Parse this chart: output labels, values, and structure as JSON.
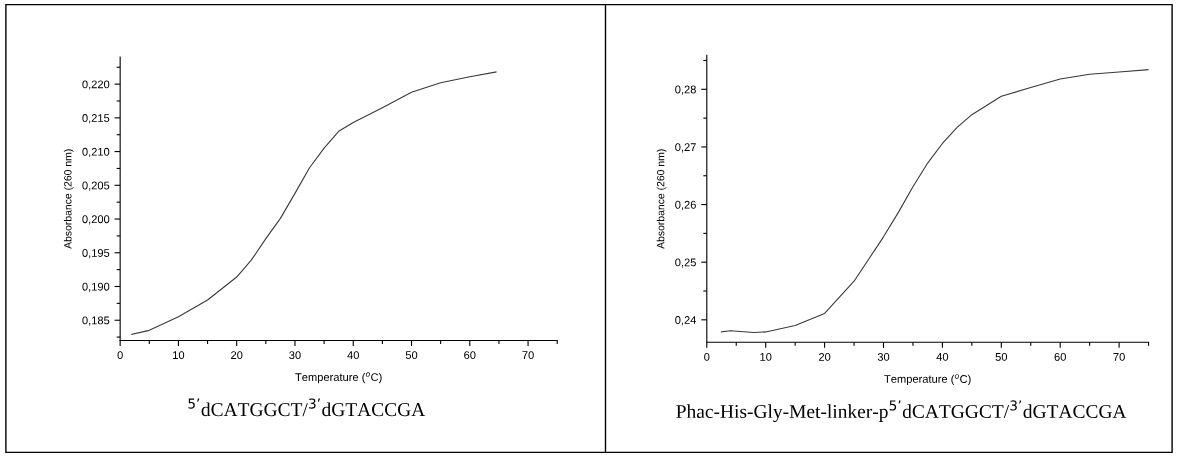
{
  "chart_data": [
    {
      "type": "line",
      "xlabel": "Temperature ($^{o}$C)",
      "ylabel": "Absorbance (260 nm)",
      "annotations": [
        "$^{5’}$dCATGGCT/$^{3’}$dGTACCGA"
      ],
      "xlim": [
        0,
        75
      ],
      "xticks": [
        0,
        10,
        20,
        30,
        40,
        50,
        60,
        70
      ],
      "ylim": [
        0.182,
        0.224
      ],
      "yticks": [
        {
          "value": 0.185,
          "label": "0,185"
        },
        {
          "value": 0.19,
          "label": "0,190"
        },
        {
          "value": 0.195,
          "label": "0,195"
        },
        {
          "value": 0.2,
          "label": "0,200"
        },
        {
          "value": 0.205,
          "label": "0,205"
        },
        {
          "value": 0.21,
          "label": "0,210"
        },
        {
          "value": 0.215,
          "label": "0,215"
        },
        {
          "value": 0.22,
          "label": "0,220"
        }
      ],
      "grid": false,
      "legend": false,
      "marker": "none",
      "line_style": "solid",
      "series": [
        {
          "color": "#3a3a3a",
          "x": [
            2,
            5,
            10,
            15,
            20,
            22.5,
            25,
            27.5,
            30,
            32.5,
            35,
            37.5,
            40,
            45,
            50,
            55,
            60,
            64.5
          ],
          "values": [
            0.1829,
            0.1835,
            0.1855,
            0.188,
            0.1914,
            0.1939,
            0.1971,
            0.2001,
            0.2038,
            0.2076,
            0.2105,
            0.213,
            0.2143,
            0.2165,
            0.2188,
            0.2202,
            0.2211,
            0.2218
          ]
        }
      ]
    },
    {
      "type": "line",
      "xlabel": "Temperature ($^{o}$C)",
      "ylabel": "Absorbance (260 nm)",
      "annotations": [
        "Phac-His-Gly-Met-linker-p$^{5’}$dCATGGCT/$^{3’}$dGTACCGA"
      ],
      "xlim": [
        0,
        75
      ],
      "xticks": [
        0,
        10,
        20,
        30,
        40,
        50,
        60,
        70
      ],
      "ylim": [
        0.2361,
        0.2859
      ],
      "yticks": [
        {
          "value": 0.24,
          "label": "0,24"
        },
        {
          "value": 0.25,
          "label": "0,25"
        },
        {
          "value": 0.26,
          "label": "0,26"
        },
        {
          "value": 0.27,
          "label": "0,27"
        },
        {
          "value": 0.28,
          "label": "0,28"
        }
      ],
      "grid": false,
      "legend": false,
      "marker": "none",
      "line_style": "solid",
      "series": [
        {
          "color": "#3a3a3a",
          "x": [
            2.5,
            4,
            8,
            10,
            15,
            20,
            25,
            30,
            32.5,
            35,
            37.5,
            40,
            42.5,
            45,
            50,
            55,
            60,
            65,
            70,
            75
          ],
          "values": [
            0.2379,
            0.2381,
            0.2378,
            0.2379,
            0.239,
            0.2411,
            0.2467,
            0.2544,
            0.2586,
            0.2631,
            0.2672,
            0.2706,
            0.2734,
            0.2756,
            0.2788,
            0.2803,
            0.2818,
            0.2826,
            0.283,
            0.2834
          ]
        }
      ]
    }
  ]
}
